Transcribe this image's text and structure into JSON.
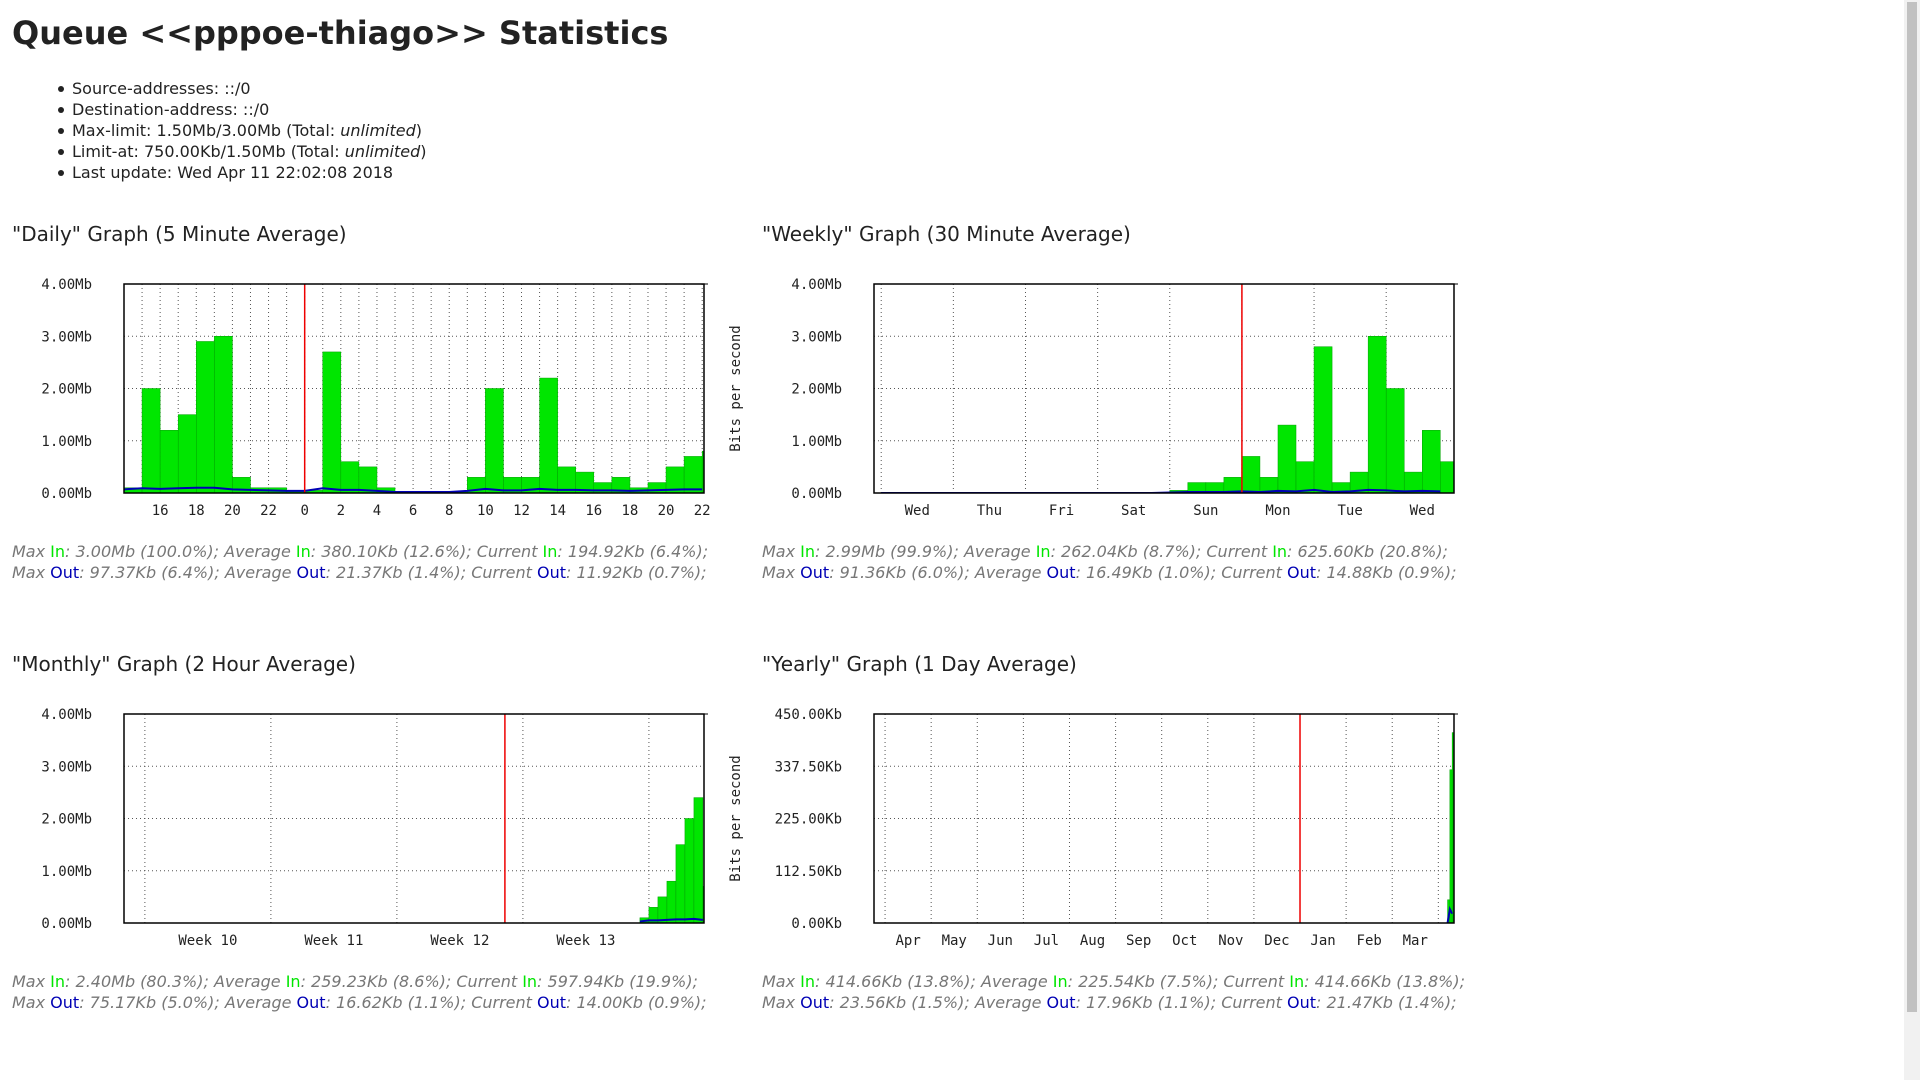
{
  "header": {
    "title": "Queue <<pppoe-thiago>> Statistics"
  },
  "info": [
    [
      "Source-addresses: ::/0"
    ],
    [
      "Destination-address: ::/0"
    ],
    [
      "Max-limit: 1.50Mb/3.00Mb (Total: ",
      "unlimited",
      ")"
    ],
    [
      "Limit-at: 750.00Kb/1.50Mb (Total: ",
      "unlimited",
      ")"
    ],
    [
      "Last update: Wed Apr 11 22:02:08 2018"
    ]
  ],
  "chart_data": [
    {
      "type": "bar",
      "title": "\"Daily\" Graph (5 Minute Average)",
      "ylabel": "Bits per second",
      "ylim": [
        0,
        4.0
      ],
      "yticks": [
        {
          "value": 0,
          "label": "0.00Mb"
        },
        {
          "value": 1,
          "label": "1.00Mb"
        },
        {
          "value": 2,
          "label": "2.00Mb"
        },
        {
          "value": 3,
          "label": "3.00Mb"
        },
        {
          "value": 4,
          "label": "4.00Mb"
        }
      ],
      "xlim": [
        14,
        46.1
      ],
      "xticks": [
        {
          "value": 16,
          "label": "16"
        },
        {
          "value": 18,
          "label": "18"
        },
        {
          "value": 20,
          "label": "20"
        },
        {
          "value": 22,
          "label": "22"
        },
        {
          "value": 24,
          "label": "0"
        },
        {
          "value": 26,
          "label": "2"
        },
        {
          "value": 28,
          "label": "4"
        },
        {
          "value": 30,
          "label": "6"
        },
        {
          "value": 32,
          "label": "8"
        },
        {
          "value": 34,
          "label": "10"
        },
        {
          "value": 36,
          "label": "12"
        },
        {
          "value": 38,
          "label": "14"
        },
        {
          "value": 40,
          "label": "16"
        },
        {
          "value": 42,
          "label": "18"
        },
        {
          "value": 44,
          "label": "20"
        },
        {
          "value": 46,
          "label": "22"
        }
      ],
      "xgrid": [
        15,
        16,
        17,
        18,
        19,
        20,
        21,
        22,
        23,
        24,
        25,
        26,
        27,
        28,
        29,
        30,
        31,
        32,
        33,
        34,
        35,
        36,
        37,
        38,
        39,
        40,
        41,
        42,
        43,
        44,
        45,
        46
      ],
      "now": 24,
      "x": [
        14,
        15,
        16,
        17,
        18,
        19,
        20,
        21,
        22,
        23,
        24,
        25,
        26,
        27,
        28,
        29,
        30,
        31,
        32,
        33,
        34,
        35,
        36,
        37,
        38,
        39,
        40,
        41,
        42,
        43,
        44,
        45,
        46
      ],
      "series": [
        {
          "name": "In",
          "color": "#00e600",
          "values": [
            0.1,
            2.0,
            1.2,
            1.5,
            2.9,
            3.0,
            0.3,
            0.1,
            0.1,
            0.05,
            0.05,
            2.7,
            0.6,
            0.5,
            0.1,
            0.02,
            0.02,
            0.02,
            0.02,
            0.3,
            2.0,
            0.3,
            0.3,
            2.2,
            0.5,
            0.4,
            0.2,
            0.3,
            0.1,
            0.2,
            0.5,
            0.7,
            0.8
          ]
        },
        {
          "name": "Out",
          "color": "#0000b4",
          "values": [
            0.07,
            0.09,
            0.08,
            0.09,
            0.1,
            0.1,
            0.07,
            0.06,
            0.05,
            0.04,
            0.04,
            0.09,
            0.06,
            0.06,
            0.04,
            0.02,
            0.02,
            0.02,
            0.02,
            0.04,
            0.08,
            0.05,
            0.05,
            0.08,
            0.06,
            0.06,
            0.05,
            0.05,
            0.04,
            0.05,
            0.06,
            0.07,
            0.07
          ]
        }
      ],
      "stats": [
        [
          [
            "Max ",
            ": 3.00Mb (100.0%); "
          ],
          [
            "Average ",
            ": 380.10Kb (12.6%); "
          ],
          [
            "Current ",
            ": 194.92Kb (6.4%);"
          ]
        ],
        [
          [
            "Max ",
            ": 97.37Kb (6.4%); "
          ],
          [
            "Average ",
            ": 21.37Kb (1.4%); "
          ],
          [
            "Current ",
            ": 11.92Kb (0.7%);"
          ]
        ]
      ]
    },
    {
      "type": "bar",
      "title": "\"Weekly\" Graph (30 Minute Average)",
      "ylim": [
        0,
        4.0
      ],
      "yticks": [
        {
          "value": 0,
          "label": "0.00Mb"
        },
        {
          "value": 1,
          "label": "1.00Mb"
        },
        {
          "value": 2,
          "label": "2.00Mb"
        },
        {
          "value": 3,
          "label": "3.00Mb"
        },
        {
          "value": 4,
          "label": "4.00Mb"
        }
      ],
      "xlim": [
        -0.1,
        7.94
      ],
      "xticks": [
        {
          "value": 0.5,
          "label": "Wed"
        },
        {
          "value": 1.5,
          "label": "Thu"
        },
        {
          "value": 2.5,
          "label": "Fri"
        },
        {
          "value": 3.5,
          "label": "Sat"
        },
        {
          "value": 4.5,
          "label": "Sun"
        },
        {
          "value": 5.5,
          "label": "Mon"
        },
        {
          "value": 6.5,
          "label": "Tue"
        },
        {
          "value": 7.5,
          "label": "Wed"
        }
      ],
      "xgrid": [
        0,
        1,
        2,
        3,
        4,
        5,
        6,
        7
      ],
      "now": 5,
      "x": [
        0,
        0.25,
        0.5,
        0.75,
        1,
        1.25,
        1.5,
        1.75,
        2,
        2.25,
        2.5,
        2.75,
        3,
        3.25,
        3.5,
        3.75,
        4,
        4.25,
        4.5,
        4.75,
        5,
        5.25,
        5.5,
        5.75,
        6,
        6.25,
        6.5,
        6.75,
        7,
        7.25,
        7.5,
        7.75
      ],
      "series": [
        {
          "name": "In",
          "color": "#00e600",
          "values": [
            0,
            0,
            0,
            0,
            0,
            0,
            0,
            0,
            0,
            0,
            0,
            0,
            0,
            0,
            0,
            0,
            0.05,
            0.2,
            0.2,
            0.3,
            0.7,
            0.3,
            1.3,
            0.6,
            2.8,
            0.2,
            0.4,
            3.0,
            2.0,
            0.4,
            1.2,
            0.6
          ]
        },
        {
          "name": "Out",
          "color": "#0000b4",
          "values": [
            0,
            0,
            0,
            0,
            0,
            0,
            0,
            0,
            0,
            0,
            0,
            0,
            0,
            0,
            0,
            0,
            0.01,
            0.02,
            0.02,
            0.02,
            0.03,
            0.02,
            0.04,
            0.03,
            0.06,
            0.02,
            0.03,
            0.06,
            0.05,
            0.03,
            0.04,
            0.03
          ]
        }
      ],
      "stats": [
        [
          [
            "Max ",
            ": 2.99Mb (99.9%); "
          ],
          [
            "Average ",
            ": 262.04Kb (8.7%); "
          ],
          [
            "Current ",
            ": 625.60Kb (20.8%);"
          ]
        ],
        [
          [
            "Max ",
            ": 91.36Kb (6.0%); "
          ],
          [
            "Average ",
            ": 16.49Kb (1.0%); "
          ],
          [
            "Current ",
            ": 14.88Kb (0.9%);"
          ]
        ]
      ]
    },
    {
      "type": "bar",
      "title": "\"Monthly\" Graph (2 Hour Average)",
      "ylabel": "Bits per second",
      "ylim": [
        0,
        4.0
      ],
      "yticks": [
        {
          "value": 0,
          "label": "0.00Mb"
        },
        {
          "value": 1,
          "label": "1.00Mb"
        },
        {
          "value": 2,
          "label": "2.00Mb"
        },
        {
          "value": 3,
          "label": "3.00Mb"
        },
        {
          "value": 4,
          "label": "4.00Mb"
        }
      ],
      "xlim": [
        -1.16,
        31.06
      ],
      "xticks": [
        {
          "value": 3.5,
          "label": "Week 10"
        },
        {
          "value": 10.5,
          "label": "Week 11"
        },
        {
          "value": 17.5,
          "label": "Week 12"
        },
        {
          "value": 24.5,
          "label": "Week 13"
        }
      ],
      "xgrid": [
        0,
        7,
        14,
        21,
        28
      ],
      "now": 20,
      "x": [
        27.5,
        28,
        28.5,
        29,
        29.5,
        30,
        30.5,
        31
      ],
      "series": [
        {
          "name": "In",
          "color": "#00e600",
          "values": [
            0.1,
            0.3,
            0.5,
            0.8,
            1.5,
            2.0,
            2.4,
            0.7
          ]
        },
        {
          "name": "Out",
          "color": "#0000b4",
          "values": [
            0.03,
            0.05,
            0.05,
            0.06,
            0.07,
            0.07,
            0.08,
            0.06
          ]
        }
      ],
      "stats": [
        [
          [
            "Max ",
            ": 2.40Mb (80.3%); "
          ],
          [
            "Average ",
            ": 259.23Kb (8.6%); "
          ],
          [
            "Current ",
            ": 597.94Kb (19.9%);"
          ]
        ],
        [
          [
            "Max ",
            ": 75.17Kb (5.0%); "
          ],
          [
            "Average ",
            ": 16.62Kb (1.1%); "
          ],
          [
            "Current ",
            ": 14.00Kb (0.9%);"
          ]
        ]
      ]
    },
    {
      "type": "bar",
      "title": "\"Yearly\" Graph (1 Day Average)",
      "ylim": [
        0,
        450
      ],
      "yticks": [
        {
          "value": 0,
          "label": "0.00Kb"
        },
        {
          "value": 112.5,
          "label": "112.50Kb"
        },
        {
          "value": 225,
          "label": "225.00Kb"
        },
        {
          "value": 337.5,
          "label": "337.50Kb"
        },
        {
          "value": 450,
          "label": "450.00Kb"
        }
      ],
      "xlim": [
        -0.24,
        12.34
      ],
      "xticks": [
        {
          "value": 0.5,
          "label": "Apr"
        },
        {
          "value": 1.5,
          "label": "May"
        },
        {
          "value": 2.5,
          "label": "Jun"
        },
        {
          "value": 3.5,
          "label": "Jul"
        },
        {
          "value": 4.5,
          "label": "Aug"
        },
        {
          "value": 5.5,
          "label": "Sep"
        },
        {
          "value": 6.5,
          "label": "Oct"
        },
        {
          "value": 7.5,
          "label": "Nov"
        },
        {
          "value": 8.5,
          "label": "Dec"
        },
        {
          "value": 9.5,
          "label": "Jan"
        },
        {
          "value": 10.5,
          "label": "Feb"
        },
        {
          "value": 11.5,
          "label": "Mar"
        }
      ],
      "xgrid": [
        0,
        1,
        2,
        3,
        4,
        5,
        6,
        7,
        8,
        9,
        10,
        11,
        12
      ],
      "now": 9,
      "x": [
        12.2,
        12.25,
        12.3
      ],
      "series": [
        {
          "name": "In",
          "color": "#00e600",
          "values": [
            50,
            330,
            410
          ]
        },
        {
          "name": "Out",
          "color": "#0000b4",
          "values": [
            0,
            30,
            20
          ]
        }
      ],
      "stats": [
        [
          [
            "Max ",
            ": 414.66Kb (13.8%); "
          ],
          [
            "Average ",
            ": 225.54Kb (7.5%); "
          ],
          [
            "Current ",
            ": 414.66Kb (13.8%);"
          ]
        ],
        [
          [
            "Max ",
            ": 23.56Kb (1.5%); "
          ],
          [
            "Average ",
            ": 17.96Kb (1.1%); "
          ],
          [
            "Current ",
            ": 21.47Kb (1.4%);"
          ]
        ]
      ]
    }
  ]
}
